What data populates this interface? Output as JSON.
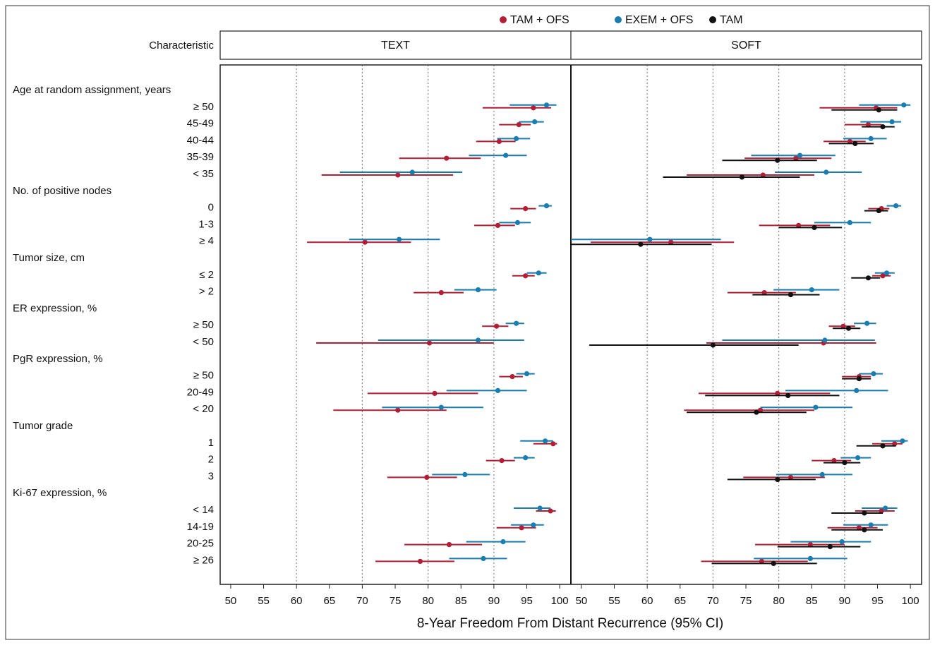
{
  "chart_data": {
    "type": "forest",
    "column_title": "Characteristic",
    "categories": [
      "Age at random assignment, years",
      "≥ 50",
      "45-49",
      "40-44",
      "35-39",
      "< 35",
      "No. of positive nodes",
      "0",
      "1-3",
      "≥ 4",
      "Tumor size, cm",
      "≤ 2",
      "> 2",
      "ER expression, %",
      "≥ 50",
      "< 50",
      "PgR expression, %",
      "≥ 50",
      "20-49",
      "< 20",
      "Tumor grade",
      "1",
      "2",
      "3",
      "Ki-67 expression, %",
      "< 14",
      "14-19",
      "20-25",
      "≥ 26"
    ],
    "panels": [
      "TEXT",
      "SOFT"
    ],
    "series": [
      {
        "name": "TAM + OFS",
        "color": "#b01f35",
        "values": [
          [
            null,
            96.0,
            93.8,
            90.8,
            82.8,
            75.4,
            null,
            94.8,
            90.6,
            70.4,
            null,
            94.8,
            82.0,
            null,
            90.4,
            80.2,
            null,
            92.8,
            81.0,
            75.4,
            null,
            99.0,
            91.2,
            79.8,
            null,
            98.6,
            94.2,
            83.2,
            78.8
          ],
          [
            null,
            94.8,
            93.6,
            90.8,
            82.6,
            77.6,
            null,
            95.6,
            83.0,
            63.6,
            null,
            95.8,
            77.8,
            null,
            89.8,
            86.8,
            null,
            92.2,
            79.8,
            77.2,
            null,
            97.6,
            88.4,
            81.8,
            null,
            95.6,
            92.2,
            84.8,
            77.4
          ]
        ],
        "lower": [
          [
            null,
            88.3,
            90.8,
            87.3,
            75.6,
            63.8,
            null,
            92.5,
            87.0,
            61.6,
            null,
            92.8,
            77.8,
            null,
            88.2,
            63.0,
            null,
            90.8,
            70.8,
            65.6,
            null,
            96.0,
            88.8,
            73.8,
            null,
            96.4,
            90.4,
            76.4,
            72.0
          ],
          [
            null,
            86.2,
            90.0,
            86.8,
            74.8,
            66.0,
            null,
            93.6,
            77.0,
            51.4,
            null,
            94.2,
            72.2,
            null,
            87.6,
            69.0,
            null,
            89.6,
            67.8,
            65.6,
            null,
            94.2,
            85.0,
            74.6,
            null,
            91.6,
            87.4,
            76.4,
            68.2
          ]
        ],
        "upper": [
          [
            null,
            98.7,
            95.6,
            93.3,
            88.0,
            83.8,
            null,
            96.4,
            93.2,
            77.4,
            null,
            96.2,
            85.4,
            null,
            92.2,
            90.0,
            null,
            94.4,
            87.6,
            82.8,
            null,
            99.6,
            93.2,
            84.4,
            null,
            99.4,
            96.4,
            88.2,
            84.0
          ],
          [
            null,
            98.0,
            95.6,
            93.2,
            88.0,
            85.4,
            null,
            96.8,
            87.8,
            73.2,
            null,
            97.0,
            82.6,
            null,
            91.6,
            94.8,
            null,
            94.0,
            87.8,
            85.4,
            null,
            98.8,
            91.0,
            87.0,
            null,
            97.6,
            95.0,
            90.0,
            84.4
          ]
        ]
      },
      {
        "name": "EXEM + OFS",
        "color": "#1a7db0",
        "values": [
          [
            null,
            98.0,
            96.2,
            93.4,
            91.8,
            77.6,
            null,
            98.0,
            93.6,
            75.6,
            null,
            96.8,
            87.6,
            null,
            93.4,
            87.6,
            null,
            95.0,
            90.6,
            82.0,
            null,
            97.8,
            94.8,
            85.6,
            null,
            97.0,
            96.0,
            91.4,
            88.4
          ],
          [
            null,
            99.0,
            97.2,
            94.0,
            83.2,
            87.2,
            null,
            97.8,
            90.8,
            60.4,
            null,
            96.4,
            85.0,
            null,
            93.4,
            87.0,
            null,
            94.4,
            91.8,
            85.6,
            null,
            98.8,
            92.0,
            86.6,
            null,
            96.2,
            94.0,
            89.6,
            84.8
          ]
        ],
        "lower": [
          [
            null,
            92.4,
            93.8,
            90.5,
            86.2,
            66.6,
            null,
            96.8,
            90.8,
            68.0,
            null,
            95.0,
            84.0,
            null,
            91.8,
            72.4,
            null,
            93.4,
            82.8,
            73.0,
            null,
            94.0,
            93.0,
            80.6,
            null,
            93.0,
            92.6,
            85.8,
            83.2
          ],
          [
            null,
            92.2,
            92.4,
            89.8,
            75.8,
            79.4,
            null,
            96.4,
            85.4,
            48.4,
            null,
            94.6,
            79.2,
            null,
            91.4,
            71.4,
            null,
            92.2,
            81.0,
            77.2,
            null,
            95.6,
            89.4,
            79.6,
            null,
            92.6,
            89.8,
            81.8,
            76.2
          ]
        ],
        "upper": [
          [
            null,
            99.5,
            97.6,
            95.5,
            95.0,
            85.2,
            null,
            98.8,
            95.6,
            81.8,
            null,
            98.0,
            90.4,
            null,
            94.6,
            94.6,
            null,
            96.2,
            95.0,
            88.4,
            null,
            99.0,
            96.2,
            89.4,
            null,
            98.6,
            97.6,
            94.8,
            92.0
          ],
          [
            null,
            100.0,
            98.6,
            96.4,
            88.6,
            92.6,
            null,
            98.6,
            94.0,
            71.2,
            null,
            97.6,
            89.2,
            null,
            94.8,
            94.6,
            null,
            95.8,
            96.6,
            91.2,
            null,
            99.6,
            94.0,
            91.2,
            null,
            98.0,
            96.6,
            94.0,
            90.4
          ]
        ]
      },
      {
        "name": "TAM",
        "color": "#111111",
        "values": [
          [
            null,
            null,
            null,
            null,
            null,
            null,
            null,
            null,
            null,
            null,
            null,
            null,
            null,
            null,
            null,
            null,
            null,
            null,
            null,
            null,
            null,
            null,
            null,
            null,
            null,
            null,
            null,
            null,
            null
          ],
          [
            null,
            95.2,
            95.8,
            91.6,
            79.8,
            74.4,
            null,
            95.2,
            85.4,
            59.0,
            null,
            93.6,
            81.8,
            null,
            90.6,
            70.0,
            null,
            92.2,
            81.4,
            76.6,
            null,
            95.8,
            90.0,
            79.8,
            null,
            93.0,
            93.0,
            87.8,
            79.2
          ]
        ],
        "lower": [
          [
            null,
            null,
            null,
            null,
            null,
            null,
            null,
            null,
            null,
            null,
            null,
            null,
            null,
            null,
            null,
            null,
            null,
            null,
            null,
            null,
            null,
            null,
            null,
            null,
            null,
            null,
            null,
            null,
            null
          ],
          [
            null,
            88.0,
            92.6,
            87.6,
            71.4,
            62.4,
            null,
            93.0,
            80.0,
            48.4,
            null,
            91.0,
            76.0,
            null,
            88.2,
            51.2,
            null,
            89.6,
            68.8,
            66.0,
            null,
            91.8,
            86.8,
            72.2,
            null,
            88.0,
            88.0,
            79.8,
            69.8
          ]
        ],
        "upper": [
          [
            null,
            null,
            null,
            null,
            null,
            null,
            null,
            null,
            null,
            null,
            null,
            null,
            null,
            null,
            null,
            null,
            null,
            null,
            null,
            null,
            null,
            null,
            null,
            null,
            null,
            null,
            null,
            null,
            null
          ],
          [
            null,
            98.0,
            97.6,
            94.4,
            85.8,
            83.2,
            null,
            96.6,
            89.6,
            69.8,
            null,
            95.4,
            86.2,
            null,
            92.4,
            83.0,
            null,
            94.0,
            89.2,
            84.2,
            null,
            97.8,
            92.4,
            85.6,
            null,
            95.8,
            95.8,
            92.4,
            85.8
          ]
        ]
      }
    ],
    "xlim": [
      48.4,
      101.7
    ],
    "xticks": [
      50,
      55,
      60,
      65,
      70,
      75,
      80,
      85,
      90,
      95,
      100
    ],
    "grid": [
      60,
      70,
      80,
      90
    ],
    "xlabel": "8-Year Freedom From Distant Recurrence (95% CI)"
  }
}
